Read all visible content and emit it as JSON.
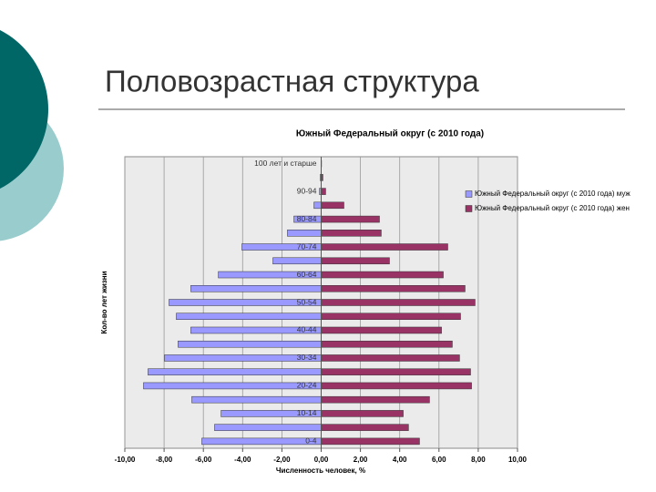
{
  "slide_title": "Половозрастная структура",
  "chart_data": {
    "type": "bar",
    "orientation": "horizontal",
    "title": "Южный Федеральный округ (с 2010 года)",
    "x_label": "Численность человек, %",
    "y_label": "Кол-во лет жизни",
    "categories": [
      "0-4",
      null,
      "10-14",
      null,
      "20-24",
      null,
      "30-34",
      null,
      "40-44",
      null,
      "50-54",
      null,
      "60-64",
      null,
      "70-74",
      null,
      "80-84",
      null,
      "90-94",
      null,
      "100 лет и старше"
    ],
    "series": [
      {
        "name": "Южный Федеральный округ (с 2010 года) муж",
        "color": "#9999ff",
        "values": [
          -6.08,
          -5.43,
          -5.1,
          -6.59,
          -9.05,
          -8.82,
          -7.98,
          -7.29,
          -6.64,
          -7.38,
          -7.75,
          -6.64,
          -5.24,
          -2.46,
          -4.04,
          -1.72,
          -1.39,
          -0.37,
          -0.09,
          -0.05,
          -0.01
        ]
      },
      {
        "name": "Южный Федеральный округ (с 2010 года) жен",
        "color": "#993366",
        "values": [
          5.01,
          4.45,
          4.18,
          5.52,
          7.66,
          7.61,
          7.05,
          6.68,
          6.13,
          7.1,
          7.84,
          7.33,
          6.22,
          3.48,
          6.45,
          3.06,
          2.97,
          1.16,
          0.23,
          0.09,
          0.02
        ]
      }
    ],
    "xlim": [
      -10,
      10
    ],
    "xticks": [
      {
        "value": -10,
        "label": "-10,00"
      },
      {
        "value": -8,
        "label": "-8,00"
      },
      {
        "value": -6,
        "label": "-6,00"
      },
      {
        "value": -4,
        "label": "-4,00"
      },
      {
        "value": -2,
        "label": "-2,00"
      },
      {
        "value": 0,
        "label": "0,00"
      },
      {
        "value": 2,
        "label": "2,00"
      },
      {
        "value": 4,
        "label": "4,00"
      },
      {
        "value": 6,
        "label": "6,00"
      },
      {
        "value": 8,
        "label": "8,00"
      },
      {
        "value": 10,
        "label": "10,00"
      }
    ],
    "grid": true,
    "legend": "right"
  }
}
